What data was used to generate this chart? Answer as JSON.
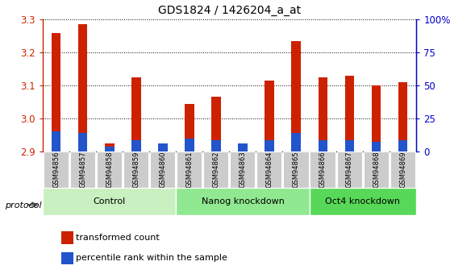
{
  "title": "GDS1824 / 1426204_a_at",
  "samples": [
    "GSM94856",
    "GSM94857",
    "GSM94858",
    "GSM94859",
    "GSM94860",
    "GSM94861",
    "GSM94862",
    "GSM94863",
    "GSM94864",
    "GSM94865",
    "GSM94866",
    "GSM94867",
    "GSM94868",
    "GSM94869"
  ],
  "transformed_count": [
    3.26,
    3.285,
    2.925,
    3.125,
    2.915,
    3.045,
    3.065,
    2.915,
    3.115,
    3.235,
    3.125,
    3.13,
    3.1,
    3.11
  ],
  "percentile_rank_val": [
    10,
    10,
    5,
    7,
    6,
    8,
    7,
    5,
    7,
    11,
    8,
    8,
    7,
    8
  ],
  "blue_top": [
    2.96,
    2.955,
    2.915,
    2.935,
    2.925,
    2.94,
    2.935,
    2.925,
    2.935,
    2.955,
    2.935,
    2.935,
    2.93,
    2.935
  ],
  "ymin": 2.9,
  "ymax": 3.3,
  "yticks": [
    2.9,
    3.0,
    3.1,
    3.2,
    3.3
  ],
  "right_yticks_val": [
    0,
    25,
    50,
    75,
    100
  ],
  "right_ytick_labels": [
    "0",
    "25",
    "50",
    "75",
    "100%"
  ],
  "groups": [
    {
      "label": "Control",
      "start": 0,
      "end": 5,
      "color": "#c8f0c0"
    },
    {
      "label": "Nanog knockdown",
      "start": 5,
      "end": 10,
      "color": "#90e890"
    },
    {
      "label": "Oct4 knockdown",
      "start": 10,
      "end": 14,
      "color": "#58d858"
    }
  ],
  "bar_color_red": "#cc2200",
  "bar_color_blue": "#2255cc",
  "axis_color_left": "#cc2200",
  "axis_color_right": "#0000cc",
  "protocol_label": "protocol",
  "legend_red": "transformed count",
  "legend_blue": "percentile rank within the sample",
  "bar_width": 0.35
}
